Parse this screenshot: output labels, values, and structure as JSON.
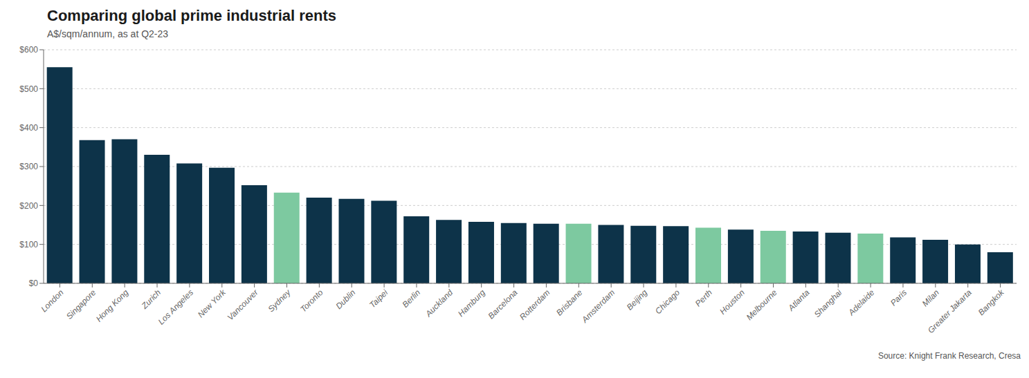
{
  "chart_data": {
    "type": "bar",
    "title": "Comparing global prime industrial rents",
    "subtitle": "A$/sqm/annum, as at Q2-23",
    "source": "Source: Knight Frank Research, Cresa",
    "categories": [
      "London",
      "Singapore",
      "Hong Kong",
      "Zurich",
      "Los Angeles",
      "New York",
      "Vancouver",
      "Sydney",
      "Toronto",
      "Dublin",
      "Taipei",
      "Berlin",
      "Auckland",
      "Hamburg",
      "Barcelona",
      "Rotterdam",
      "Brisbane",
      "Amsterdam",
      "Beijing",
      "Chicago",
      "Perth",
      "Houston",
      "Melbourne",
      "Atlanta",
      "Shanghai",
      "Adelaide",
      "Paris",
      "Milan",
      "Greater Jakarta",
      "Bangkok"
    ],
    "values": [
      555,
      368,
      370,
      330,
      308,
      297,
      252,
      233,
      220,
      217,
      212,
      172,
      163,
      158,
      155,
      153,
      153,
      150,
      148,
      147,
      143,
      138,
      135,
      133,
      130,
      128,
      118,
      112,
      100,
      80
    ],
    "colors": [
      "#0d3349",
      "#0d3349",
      "#0d3349",
      "#0d3349",
      "#0d3349",
      "#0d3349",
      "#0d3349",
      "#7dc9a0",
      "#0d3349",
      "#0d3349",
      "#0d3349",
      "#0d3349",
      "#0d3349",
      "#0d3349",
      "#0d3349",
      "#0d3349",
      "#7dc9a0",
      "#0d3349",
      "#0d3349",
      "#0d3349",
      "#7dc9a0",
      "#0d3349",
      "#7dc9a0",
      "#0d3349",
      "#0d3349",
      "#7dc9a0",
      "#0d3349",
      "#0d3349",
      "#0d3349",
      "#0d3349"
    ],
    "ylim": [
      0,
      600
    ],
    "yticks": [
      {
        "value": 0,
        "label": "$0"
      },
      {
        "value": 100,
        "label": "$100"
      },
      {
        "value": 200,
        "label": "$200"
      },
      {
        "value": 300,
        "label": "$300"
      },
      {
        "value": 400,
        "label": "$400"
      },
      {
        "value": 500,
        "label": "$500"
      },
      {
        "value": 600,
        "label": "$600"
      }
    ],
    "grid": true
  }
}
